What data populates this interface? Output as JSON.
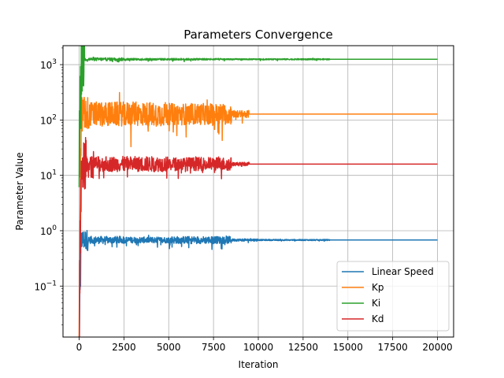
{
  "chart_data": {
    "type": "line",
    "title": "Parameters Convergence",
    "xlabel": "Iteration",
    "ylabel": "Parameter Value",
    "xlim": [
      -900,
      20900
    ],
    "ylim": [
      0.012,
      2200
    ],
    "yscale": "log",
    "grid": true,
    "legend_position": "lower right",
    "x_ticks": [
      0,
      2500,
      5000,
      7500,
      10000,
      12500,
      15000,
      17500,
      20000
    ],
    "x_tick_labels": [
      "0",
      "2500",
      "5000",
      "7500",
      "10000",
      "12500",
      "15000",
      "17500",
      "20000"
    ],
    "y_ticks": [
      0.1,
      1,
      10,
      100,
      1000
    ],
    "y_tick_labels": [
      {
        "base": "10",
        "exp": "−1"
      },
      {
        "base": "10",
        "exp": "0"
      },
      {
        "base": "10",
        "exp": "1"
      },
      {
        "base": "10",
        "exp": "2"
      },
      {
        "base": "10",
        "exp": "3"
      }
    ],
    "series": [
      {
        "name": "Linear Speed",
        "color": "#1f77b4",
        "start": 0.01,
        "final": 0.68,
        "noise_bands": [
          [
            0,
            500,
            0.35
          ],
          [
            500,
            2500,
            0.12
          ],
          [
            2500,
            5000,
            0.1
          ],
          [
            5000,
            8500,
            0.12
          ],
          [
            8500,
            10000,
            0.04
          ],
          [
            10000,
            14000,
            0.02
          ],
          [
            14000,
            20000,
            0.0
          ]
        ]
      },
      {
        "name": "Kp",
        "color": "#ff7f0e",
        "start": 0.01,
        "final": 128,
        "noise_bands": [
          [
            0,
            500,
            0.6
          ],
          [
            500,
            2500,
            0.4
          ],
          [
            2500,
            5000,
            0.4
          ],
          [
            5000,
            8500,
            0.35
          ],
          [
            8500,
            9500,
            0.12
          ],
          [
            9500,
            20000,
            0.0
          ]
        ]
      },
      {
        "name": "Ki",
        "color": "#2ca02c",
        "start": 30,
        "final": 1250,
        "noise_bands": [
          [
            0,
            300,
            1.2
          ],
          [
            300,
            2500,
            0.05
          ],
          [
            2500,
            8000,
            0.03
          ],
          [
            8000,
            14000,
            0.02
          ],
          [
            14000,
            20000,
            0.0
          ]
        ]
      },
      {
        "name": "Kd",
        "color": "#d62728",
        "start": 0.01,
        "final": 16,
        "noise_bands": [
          [
            0,
            400,
            0.9
          ],
          [
            400,
            2500,
            0.25
          ],
          [
            2500,
            5000,
            0.25
          ],
          [
            5000,
            8500,
            0.22
          ],
          [
            8500,
            9500,
            0.06
          ],
          [
            9500,
            20000,
            0.0
          ]
        ]
      }
    ]
  }
}
